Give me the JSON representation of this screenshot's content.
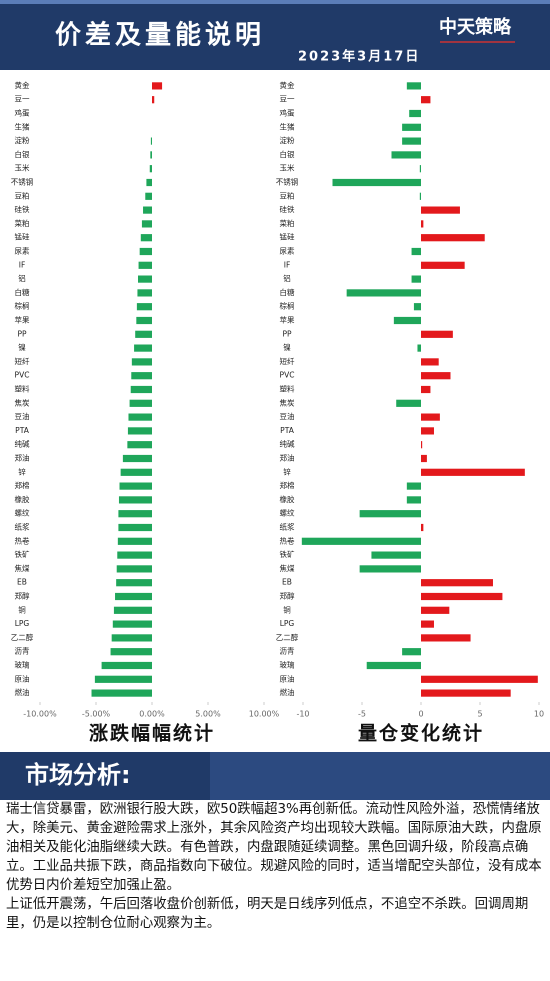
{
  "header": {
    "title": "价差及量能说明",
    "date": "2023年3月17日",
    "logo": "中天策略"
  },
  "analysis": {
    "heading": "市场分析:",
    "paragraphs": [
      "瑞士信贷暴雷，欧洲银行股大跌，欧50跌幅超3%再创新低。流动性风险外溢，恐慌情绪放大，除美元、黄金避险需求上涨外，其余风险资产均出现较大跌幅。国际原油大跌，内盘原油相关及能化油脂继续大跌。有色普跌，内盘跟随延续调整。黑色回调升级，阶段高点确立。工业品共振下跌，商品指数向下破位。规避风险的同时，适当增配空头部位，没有成本优势日内价差短空加强止盈。",
      "上证低开震荡，午后回落收盘价创新低，明天是日线序列低点，不追空不杀跌。回调周期里，仍是以控制仓位耐心观察为主。"
    ]
  },
  "chart_data": [
    {
      "type": "hbar",
      "title": "涨跌幅幅统计",
      "categories": [
        "黄金",
        "豆一",
        "鸡蛋",
        "生猪",
        "淀粉",
        "白银",
        "玉米",
        "不锈钢",
        "豆粕",
        "硅铁",
        "菜粕",
        "锰硅",
        "尿素",
        "IF",
        "铝",
        "白糖",
        "棕榈",
        "苹果",
        "PP",
        "镍",
        "短纤",
        "PVC",
        "塑料",
        "焦炭",
        "豆油",
        "PTA",
        "纯碱",
        "郑油",
        "锌",
        "郑棉",
        "橡胶",
        "螺纹",
        "纸浆",
        "热卷",
        "铁矿",
        "焦煤",
        "EB",
        "郑醇",
        "铜",
        "LPG",
        "乙二醇",
        "沥青",
        "玻璃",
        "原油",
        "燃油"
      ],
      "values": [
        0.9,
        0.2,
        0,
        0,
        -0.1,
        -0.15,
        -0.2,
        -0.5,
        -0.6,
        -0.8,
        -0.9,
        -1.0,
        -1.1,
        -1.2,
        -1.25,
        -1.3,
        -1.35,
        -1.4,
        -1.5,
        -1.6,
        -1.8,
        -1.85,
        -1.9,
        -2.0,
        -2.1,
        -2.15,
        -2.2,
        -2.6,
        -2.8,
        -2.9,
        -2.95,
        -3.0,
        -3.0,
        -3.05,
        -3.1,
        -3.15,
        -3.2,
        -3.3,
        -3.4,
        -3.5,
        -3.6,
        -3.7,
        -4.5,
        -5.1,
        -5.4
      ],
      "xlim": [
        -10,
        10
      ],
      "xticks": [
        {
          "value": -10,
          "label": "-10.00%"
        },
        {
          "value": -5,
          "label": "-5.00%"
        },
        {
          "value": 0,
          "label": "0.00%"
        },
        {
          "value": 5,
          "label": "5.00%"
        },
        {
          "value": 10,
          "label": "10.00%"
        }
      ],
      "positive_color": "#e3191c",
      "negative_color": "#1fa65a"
    },
    {
      "type": "hbar",
      "title": "量仓变化统计",
      "categories": [
        "黄金",
        "豆一",
        "鸡蛋",
        "生猪",
        "淀粉",
        "白银",
        "玉米",
        "不锈钢",
        "豆粕",
        "硅铁",
        "菜粕",
        "锰硅",
        "尿素",
        "IF",
        "铝",
        "白糖",
        "棕榈",
        "苹果",
        "PP",
        "镍",
        "短纤",
        "PVC",
        "塑料",
        "焦炭",
        "豆油",
        "PTA",
        "纯碱",
        "郑油",
        "锌",
        "郑棉",
        "橡胶",
        "螺纹",
        "纸浆",
        "热卷",
        "铁矿",
        "焦煤",
        "EB",
        "郑醇",
        "铜",
        "LPG",
        "乙二醇",
        "沥青",
        "玻璃",
        "原油",
        "燃油"
      ],
      "values": [
        -1.2,
        0.8,
        -1.0,
        -1.6,
        -1.6,
        -2.5,
        -0.1,
        -7.5,
        -0.1,
        3.3,
        0.2,
        5.4,
        -0.8,
        3.7,
        -0.8,
        -6.3,
        -0.6,
        -2.3,
        2.7,
        -0.3,
        1.5,
        2.5,
        0.8,
        -2.1,
        1.6,
        1.1,
        0.1,
        0.5,
        8.8,
        -1.2,
        -1.2,
        -5.2,
        0.2,
        -10.1,
        -4.2,
        -5.2,
        6.1,
        6.9,
        2.4,
        1.1,
        4.2,
        -1.6,
        -4.6,
        9.9,
        7.6
      ],
      "xlim": [
        -10,
        10
      ],
      "xticks": [
        -10,
        -5,
        0,
        5,
        10
      ],
      "positive_color": "#e3191c",
      "negative_color": "#1fa65a"
    }
  ]
}
